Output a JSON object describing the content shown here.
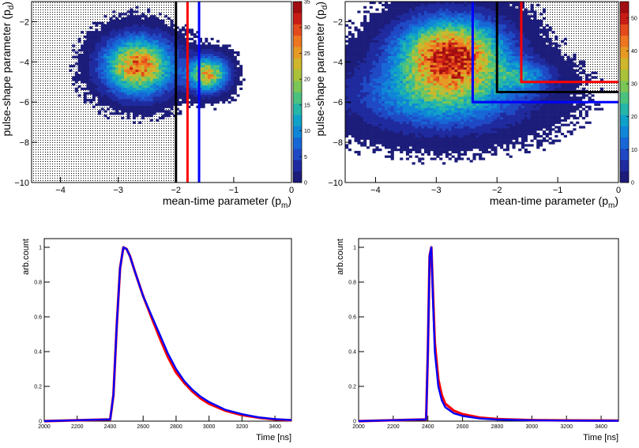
{
  "chart_data": [
    {
      "type": "heatmap",
      "panel": "top-left",
      "xlabel": "mean-time parameter (p",
      "xlabel_sub": "m",
      "ylabel": "pulse-shape parameter (p",
      "ylabel_sub": "d",
      "xlim": [
        -4.5,
        0
      ],
      "ylim": [
        -10,
        -1
      ],
      "xticks": [
        -4,
        -3,
        -2,
        -1,
        0
      ],
      "yticks": [
        -10,
        -8,
        -6,
        -4,
        -2
      ],
      "xtick_labels": [
        "−4",
        "−3",
        "−2",
        "−1",
        "0"
      ],
      "ytick_labels": [
        "−10",
        "−8",
        "−6",
        "−4",
        "−2"
      ],
      "colorbar_range": [
        0,
        35
      ],
      "colorbar_ticks": [
        "35",
        "30",
        "25",
        "20",
        "15",
        "10",
        "5",
        "0"
      ],
      "colorbar_tick_values": [
        35,
        30,
        25,
        20,
        15,
        10,
        5,
        0
      ],
      "shaded_region": {
        "x": [
          -4.5,
          -2.0
        ],
        "y": [
          -10,
          -1
        ]
      },
      "blobs": [
        {
          "cx": -2.65,
          "cy": -4.2,
          "sx": 0.38,
          "sy": 0.9,
          "peak": 28
        },
        {
          "cx": -1.45,
          "cy": -4.6,
          "sx": 0.22,
          "sy": 0.55,
          "peak": 24
        }
      ],
      "cut_lines": [
        {
          "color": "#000000",
          "x": -2.0
        },
        {
          "color": "#ff0000",
          "x": -1.8
        },
        {
          "color": "#0000ff",
          "x": -1.6
        }
      ]
    },
    {
      "type": "heatmap",
      "panel": "top-right",
      "xlabel": "mean-time parameter (p",
      "xlabel_sub": "m",
      "ylabel": "pulse-shape parameter (p",
      "ylabel_sub": "d",
      "xlim": [
        -4.5,
        0
      ],
      "ylim": [
        -10,
        -1
      ],
      "xticks": [
        -4,
        -3,
        -2,
        -1,
        0
      ],
      "yticks": [
        -10,
        -8,
        -6,
        -4,
        -2
      ],
      "xtick_labels": [
        "−4",
        "−3",
        "−2",
        "−1",
        "0"
      ],
      "ytick_labels": [
        "−10",
        "−8",
        "−6",
        "−4",
        "−2"
      ],
      "colorbar_range": [
        0,
        55
      ],
      "colorbar_ticks": [
        "50",
        "40",
        "30",
        "20",
        "10",
        "0"
      ],
      "colorbar_tick_values": [
        50,
        40,
        30,
        20,
        10,
        0
      ],
      "shaded_region": {
        "x": [
          -2.0,
          0
        ],
        "y": [
          -5.5,
          -1
        ]
      },
      "blobs": [
        {
          "cx": -2.75,
          "cy": -3.6,
          "sx": 0.55,
          "sy": 1.1,
          "peak": 50
        },
        {
          "cx": -2.9,
          "cy": -5.6,
          "sx": 0.85,
          "sy": 1.1,
          "peak": 22
        },
        {
          "cx": -1.55,
          "cy": -4.7,
          "sx": 0.3,
          "sy": 0.5,
          "peak": 14
        }
      ],
      "cut_boxes": [
        {
          "color": "#ff0000",
          "x": -1.6,
          "y": -5.0
        },
        {
          "color": "#000000",
          "x": -2.0,
          "y": -5.5
        },
        {
          "color": "#0000ff",
          "x": -2.4,
          "y": -6.0
        }
      ]
    },
    {
      "type": "line",
      "panel": "bottom-left",
      "xlabel": "Time [ns]",
      "ylabel": "arb.count",
      "xlim": [
        2000,
        3500
      ],
      "ylim": [
        0,
        1.05
      ],
      "xticks": [
        2000,
        2200,
        2400,
        2600,
        2800,
        3000,
        3200,
        3400
      ],
      "xtick_labels": [
        "2000",
        "2200",
        "2400",
        "2600",
        "2800",
        "3000",
        "3200",
        "3400"
      ],
      "yticks": [
        0,
        0.2,
        0.4,
        0.6,
        0.8,
        1
      ],
      "ytick_labels": [
        "0",
        "0.2",
        "0.4",
        "0.6",
        "0.8",
        "1"
      ],
      "series": [
        {
          "color": "#ff0000",
          "x": [
            2000,
            2400,
            2420,
            2440,
            2460,
            2480,
            2500,
            2520,
            2550,
            2600,
            2650,
            2700,
            2750,
            2800,
            2850,
            2900,
            2950,
            3000,
            3100,
            3200,
            3300,
            3400,
            3500
          ],
          "y": [
            0,
            0.01,
            0.15,
            0.55,
            0.88,
            1.0,
            0.99,
            0.95,
            0.86,
            0.72,
            0.6,
            0.48,
            0.37,
            0.28,
            0.22,
            0.17,
            0.13,
            0.1,
            0.06,
            0.035,
            0.02,
            0.01,
            0.005
          ]
        },
        {
          "color": "#0000ff",
          "x": [
            2000,
            2400,
            2420,
            2440,
            2460,
            2480,
            2500,
            2520,
            2550,
            2600,
            2650,
            2700,
            2750,
            2800,
            2850,
            2900,
            2950,
            3000,
            3100,
            3200,
            3300,
            3400,
            3500
          ],
          "y": [
            0,
            0.01,
            0.15,
            0.55,
            0.88,
            1.0,
            0.99,
            0.95,
            0.86,
            0.72,
            0.61,
            0.5,
            0.39,
            0.3,
            0.23,
            0.18,
            0.14,
            0.11,
            0.065,
            0.04,
            0.022,
            0.012,
            0.006
          ]
        }
      ]
    },
    {
      "type": "line",
      "panel": "bottom-right",
      "xlabel": "Time [ns]",
      "ylabel": "arb.count",
      "xlim": [
        2000,
        3500
      ],
      "ylim": [
        0,
        1.05
      ],
      "xticks": [
        2000,
        2200,
        2400,
        2600,
        2800,
        3000,
        3200,
        3400
      ],
      "xtick_labels": [
        "2000",
        "2200",
        "2400",
        "2600",
        "2800",
        "3000",
        "3200",
        "3400"
      ],
      "yticks": [
        0,
        0.2,
        0.4,
        0.6,
        0.8,
        1
      ],
      "ytick_labels": [
        "0",
        "0.2",
        "0.4",
        "0.6",
        "0.8",
        "1"
      ],
      "series": [
        {
          "color": "#ff0000",
          "x": [
            2000,
            2390,
            2400,
            2410,
            2420,
            2430,
            2440,
            2460,
            2480,
            2500,
            2550,
            2600,
            2700,
            2800,
            3000,
            3200,
            3500
          ],
          "y": [
            0,
            0.01,
            0.4,
            0.95,
            1.0,
            0.72,
            0.45,
            0.24,
            0.15,
            0.1,
            0.06,
            0.04,
            0.02,
            0.012,
            0.006,
            0.004,
            0.003
          ]
        },
        {
          "color": "#0000ff",
          "x": [
            2000,
            2390,
            2400,
            2410,
            2420,
            2430,
            2440,
            2460,
            2480,
            2500,
            2550,
            2600,
            2700,
            2800,
            3000,
            3200,
            3500
          ],
          "y": [
            0,
            0.01,
            0.4,
            0.95,
            1.0,
            0.68,
            0.4,
            0.2,
            0.12,
            0.08,
            0.045,
            0.03,
            0.015,
            0.009,
            0.005,
            0.003,
            0.002
          ]
        }
      ]
    }
  ]
}
